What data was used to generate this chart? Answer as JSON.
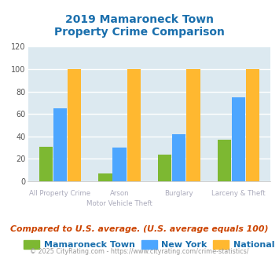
{
  "title": "2019 Mamaroneck Town\nProperty Crime Comparison",
  "x_labels_line1": [
    "All Property Crime",
    "Arson",
    "Burglary",
    "Larceny & Theft"
  ],
  "x_labels_line2": [
    "",
    "Motor Vehicle Theft",
    "",
    ""
  ],
  "mamaroneck": [
    31,
    7,
    24,
    37
  ],
  "new_york": [
    65,
    30,
    42,
    75
  ],
  "national": [
    100,
    100,
    100,
    100
  ],
  "colors": {
    "mamaroneck": "#7db832",
    "new_york": "#4da6ff",
    "national": "#ffb830"
  },
  "ylim": [
    0,
    120
  ],
  "yticks": [
    0,
    20,
    40,
    60,
    80,
    100,
    120
  ],
  "title_color": "#1a6fad",
  "plot_bg": "#dce9f0",
  "fig_bg": "#ffffff",
  "legend_labels": [
    "Mamaroneck Town",
    "New York",
    "National"
  ],
  "footer_text": "Compared to U.S. average. (U.S. average equals 100)",
  "copyright_text": "© 2025 CityRating.com - https://www.cityrating.com/crime-statistics/",
  "x_label_color": "#aaaabb",
  "grid_color": "#ffffff",
  "footer_color": "#cc4400",
  "copyright_color": "#999999",
  "legend_text_color": "#1a6fad"
}
